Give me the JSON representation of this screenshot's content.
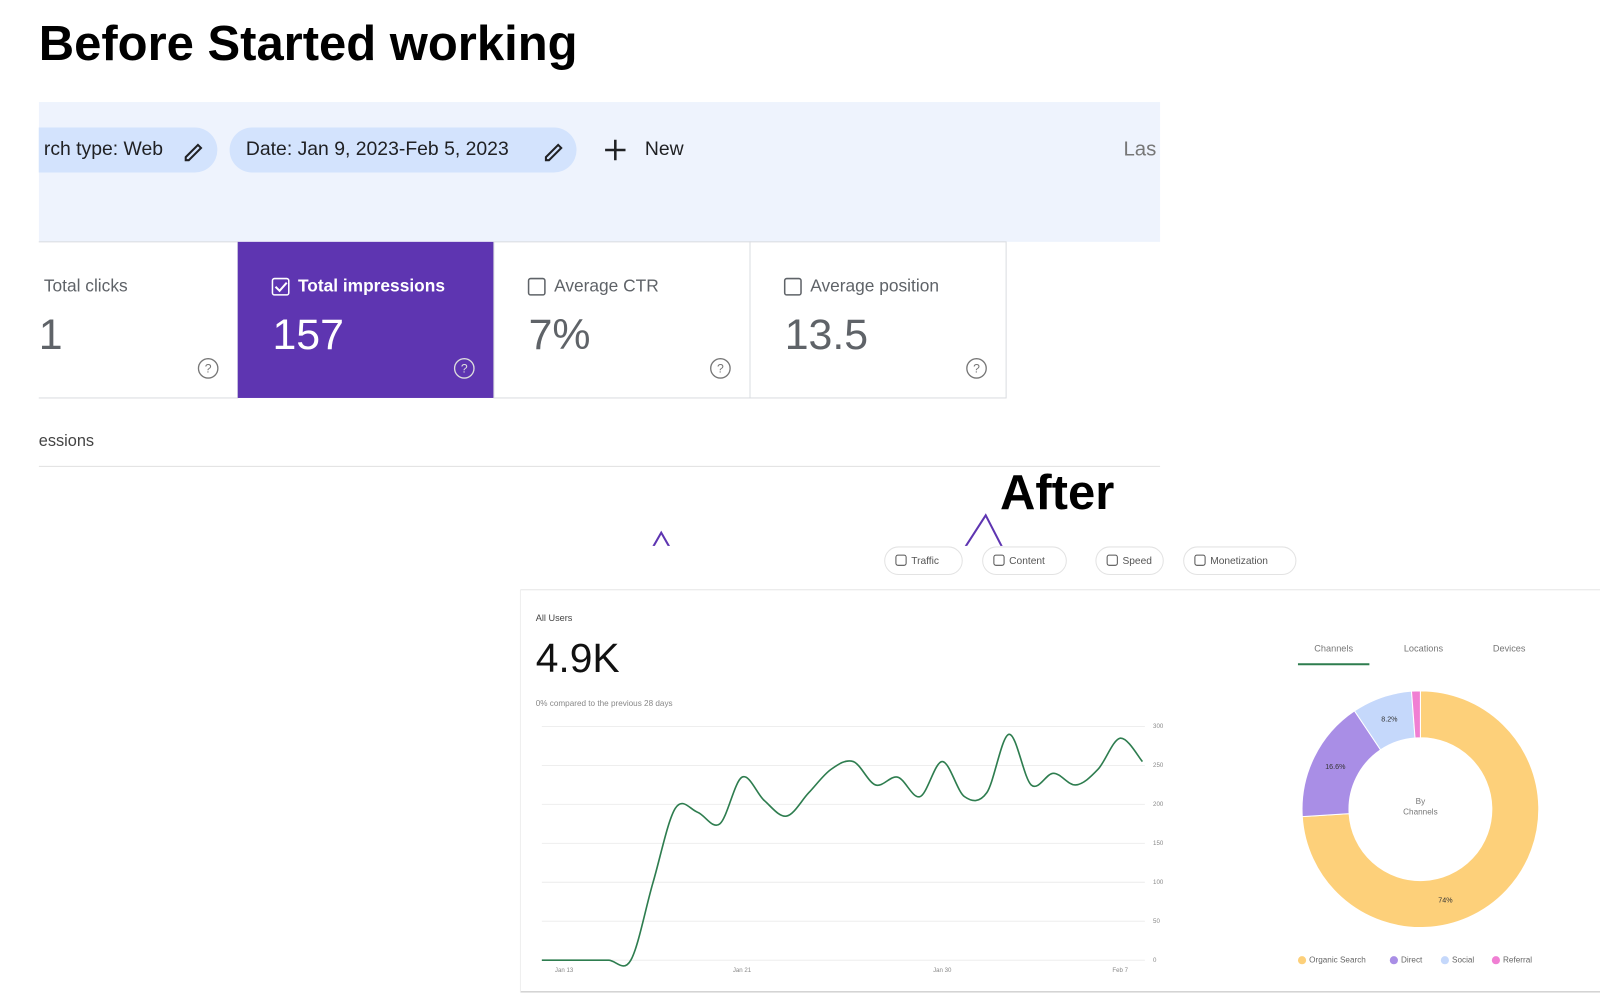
{
  "header": {
    "title": "Before Started  working"
  },
  "before": {
    "filters": [
      "rch type: Web",
      "Date: Jan 9, 2023-Feb 5, 2023"
    ],
    "new_button": "New",
    "truncated_right": "Las",
    "metrics": [
      {
        "label": "Total clicks",
        "value": "1"
      },
      {
        "label": "Total impressions",
        "value": "157"
      },
      {
        "label": "Average CTR",
        "value": "7%"
      },
      {
        "label": "Average position",
        "value": "13.5"
      }
    ],
    "chart_tab": "essions"
  },
  "after": {
    "title": "After",
    "tabs": [
      "Traffic",
      "Content",
      "Speed",
      "Monetization"
    ],
    "users_label": "All Users",
    "users_value": "4.9K",
    "comparison": "0% compared to the previous 28 days",
    "donut_tabs": [
      "Channels",
      "Locations",
      "Devices"
    ]
  },
  "chart_data": [
    {
      "type": "line",
      "categories": [
        null,
        "Jan 13",
        null,
        null,
        null,
        null,
        null,
        null,
        null,
        "Jan 21",
        null,
        null,
        null,
        null,
        null,
        null,
        null,
        null,
        "Jan 30",
        null,
        null,
        null,
        null,
        null,
        null,
        null,
        "Feb 7",
        null
      ],
      "series": [
        {
          "name": "All Users",
          "color": "#2e7d4f",
          "values": [
            0,
            0,
            0,
            0,
            0,
            100,
            195,
            190,
            175,
            235,
            205,
            185,
            215,
            245,
            255,
            225,
            235,
            210,
            255,
            210,
            215,
            290,
            225,
            240,
            225,
            245,
            285,
            255
          ]
        }
      ],
      "ylim": [
        0,
        300
      ],
      "yticks": [
        0,
        50,
        100,
        150,
        200,
        250,
        300
      ],
      "grid": true
    },
    {
      "type": "pie",
      "center_label": "By Channels",
      "categories": [
        "Organic Search",
        "Direct",
        "Social",
        "Referral"
      ],
      "values": [
        74,
        16.6,
        8.2,
        1.2
      ],
      "value_labels": [
        "74%",
        "16.6%",
        "8.2%",
        null
      ],
      "colors": [
        "#fdd07a",
        "#a98ee6",
        "#c5d8fb",
        "#f07fd3"
      ]
    }
  ]
}
